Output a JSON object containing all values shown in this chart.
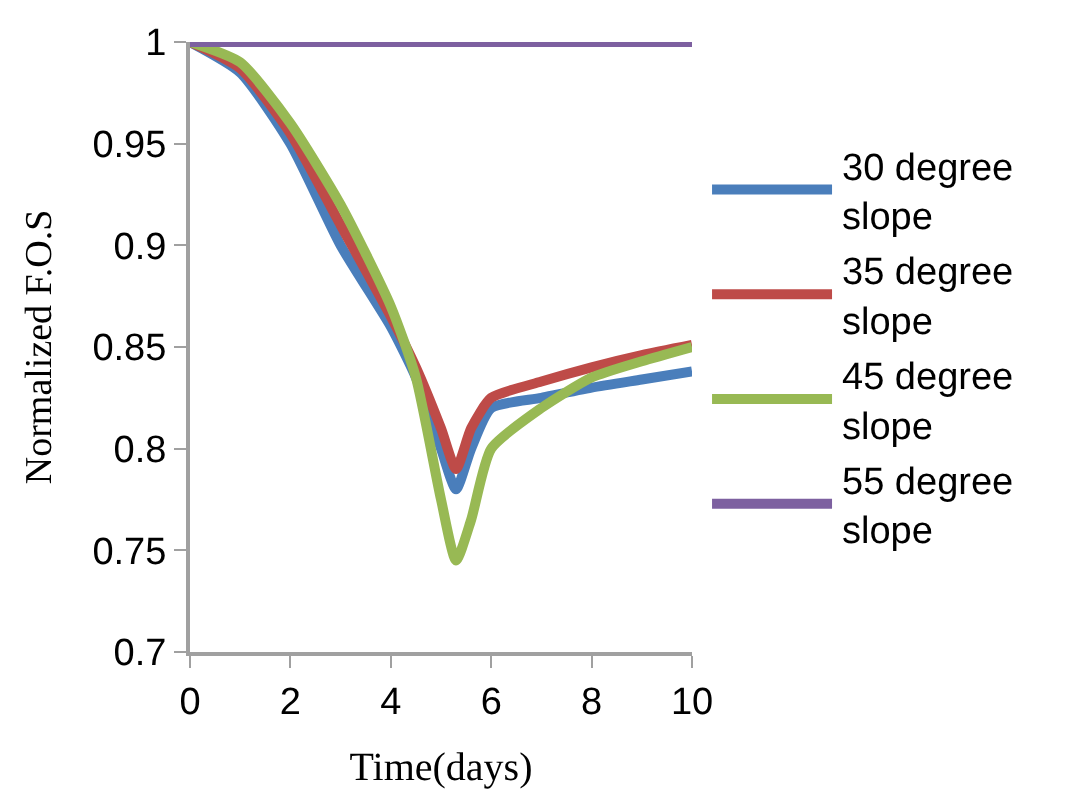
{
  "chart_data": {
    "type": "line",
    "xlabel": "Time(days)",
    "ylabel": "Normalized F.O.S",
    "x": [
      0,
      1,
      2,
      3,
      4,
      4.5,
      5,
      5.3,
      5.6,
      6,
      7,
      8,
      9,
      10
    ],
    "series": [
      {
        "name": "30 degree slope",
        "color": "#4a7ebb",
        "values": [
          1,
          0.985,
          0.95,
          0.9,
          0.86,
          0.835,
          0.8,
          0.78,
          0.8,
          0.82,
          0.825,
          0.83,
          0.834,
          0.838
        ]
      },
      {
        "name": "35 degree slope",
        "color": "#be4b48",
        "values": [
          1,
          0.987,
          0.955,
          0.91,
          0.865,
          0.84,
          0.81,
          0.79,
          0.81,
          0.825,
          0.833,
          0.84,
          0.846,
          0.851
        ]
      },
      {
        "name": "45 degree slope",
        "color": "#98b954",
        "values": [
          1,
          0.99,
          0.96,
          0.92,
          0.87,
          0.835,
          0.775,
          0.745,
          0.765,
          0.8,
          0.82,
          0.835,
          0.843,
          0.85
        ]
      },
      {
        "name": "55 degree slope",
        "color": "#7d60a0",
        "values": [
          1,
          1,
          1,
          1,
          1,
          1,
          1,
          1,
          1,
          1,
          1,
          1,
          1,
          1
        ]
      }
    ],
    "xlim": [
      0,
      10
    ],
    "xticks": [
      0,
      2,
      4,
      6,
      8,
      10
    ],
    "ylim": [
      0.7,
      1
    ],
    "yticks": [
      0.7,
      0.75,
      0.8,
      0.85,
      0.9,
      0.95,
      1
    ],
    "legend": "right",
    "marker": "none",
    "line_style": "solid"
  }
}
